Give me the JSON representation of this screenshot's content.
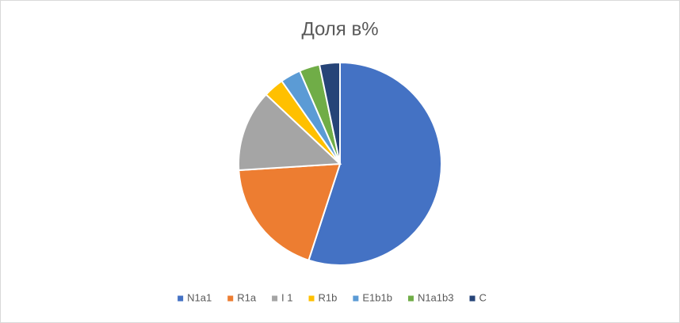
{
  "chart_data": {
    "type": "pie",
    "title": "Доля в%",
    "categories": [
      "N1a1",
      "R1a",
      "I 1",
      "R1b",
      "E1b1b",
      "N1a1b3",
      "C"
    ],
    "values": [
      55,
      19,
      13,
      3.25,
      3.25,
      3.25,
      3.25
    ],
    "colors": [
      "#4472c4",
      "#ed7d31",
      "#a5a5a5",
      "#ffc000",
      "#5b9bd5",
      "#70ad47",
      "#264478"
    ],
    "legend": "bottom"
  }
}
